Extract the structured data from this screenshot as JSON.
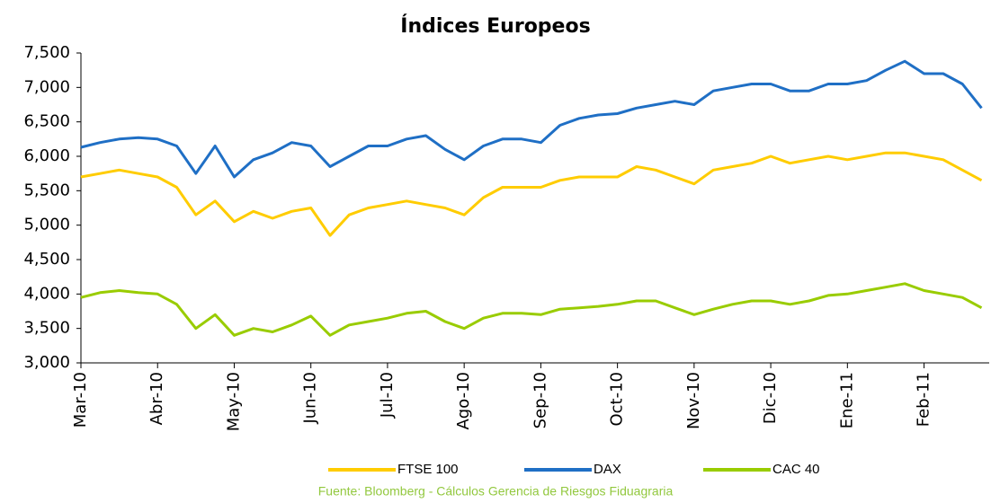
{
  "chart_data": {
    "type": "line",
    "title": "Índices Europeos",
    "categories": [
      "Mar-10",
      null,
      null,
      null,
      "Abr-10",
      null,
      null,
      null,
      "May-10",
      null,
      null,
      null,
      "Jun-10",
      null,
      null,
      null,
      "Jul-10",
      null,
      null,
      null,
      "Ago-10",
      null,
      null,
      null,
      "Sep-10",
      null,
      null,
      null,
      "Oct-10",
      null,
      null,
      null,
      "Nov-10",
      null,
      null,
      null,
      "Dic-10",
      null,
      null,
      null,
      "Ene-11",
      null,
      null,
      null,
      "Feb-11",
      null,
      null,
      null
    ],
    "series": [
      {
        "name": "FTSE 100",
        "color": "#ffcc00",
        "values": [
          5700,
          5750,
          5800,
          5750,
          5700,
          5550,
          5150,
          5350,
          5050,
          5200,
          5100,
          5200,
          5250,
          4850,
          5150,
          5250,
          5300,
          5350,
          5300,
          5250,
          5150,
          5400,
          5550,
          5550,
          5550,
          5650,
          5700,
          5700,
          5700,
          5850,
          5800,
          5700,
          5600,
          5800,
          5850,
          5900,
          6000,
          5900,
          5950,
          6000,
          5950,
          6000,
          6050,
          6050,
          6000,
          5950,
          5800,
          5650
        ]
      },
      {
        "name": "DAX",
        "color": "#1f6fc5",
        "values": [
          6130,
          6200,
          6250,
          6270,
          6250,
          6150,
          5750,
          6150,
          5700,
          5950,
          6050,
          6200,
          6150,
          5850,
          6000,
          6150,
          6150,
          6250,
          6300,
          6100,
          5950,
          6150,
          6250,
          6250,
          6200,
          6450,
          6550,
          6600,
          6620,
          6700,
          6750,
          6800,
          6750,
          6950,
          7000,
          7050,
          7050,
          6950,
          6950,
          7050,
          7050,
          7100,
          7250,
          7380,
          7200,
          7200,
          7050,
          6700
        ]
      },
      {
        "name": "CAC 40",
        "color": "#99cc00",
        "values": [
          3950,
          4020,
          4050,
          4020,
          4000,
          3850,
          3500,
          3700,
          3400,
          3500,
          3450,
          3550,
          3680,
          3400,
          3550,
          3600,
          3650,
          3720,
          3750,
          3600,
          3500,
          3650,
          3720,
          3720,
          3700,
          3780,
          3800,
          3820,
          3850,
          3900,
          3900,
          3800,
          3700,
          3780,
          3850,
          3900,
          3900,
          3850,
          3900,
          3980,
          4000,
          4050,
          4100,
          4150,
          4050,
          4000,
          3950,
          3800
        ]
      }
    ],
    "ylim": [
      3000,
      7500
    ],
    "yticks": [
      {
        "value": 3000,
        "label": "3,000"
      },
      {
        "value": 3500,
        "label": "3,500"
      },
      {
        "value": 4000,
        "label": "4,000"
      },
      {
        "value": 4500,
        "label": "4,500"
      },
      {
        "value": 5000,
        "label": "5,000"
      },
      {
        "value": 5500,
        "label": "5,500"
      },
      {
        "value": 6000,
        "label": "6,000"
      },
      {
        "value": 6500,
        "label": "6,500"
      },
      {
        "value": 7000,
        "label": "7,000"
      },
      {
        "value": 7500,
        "label": "7,500"
      }
    ],
    "legend": "bottom",
    "source": "Fuente: Bloomberg - Cálculos Gerencia de Riesgos Fiduagraria"
  }
}
